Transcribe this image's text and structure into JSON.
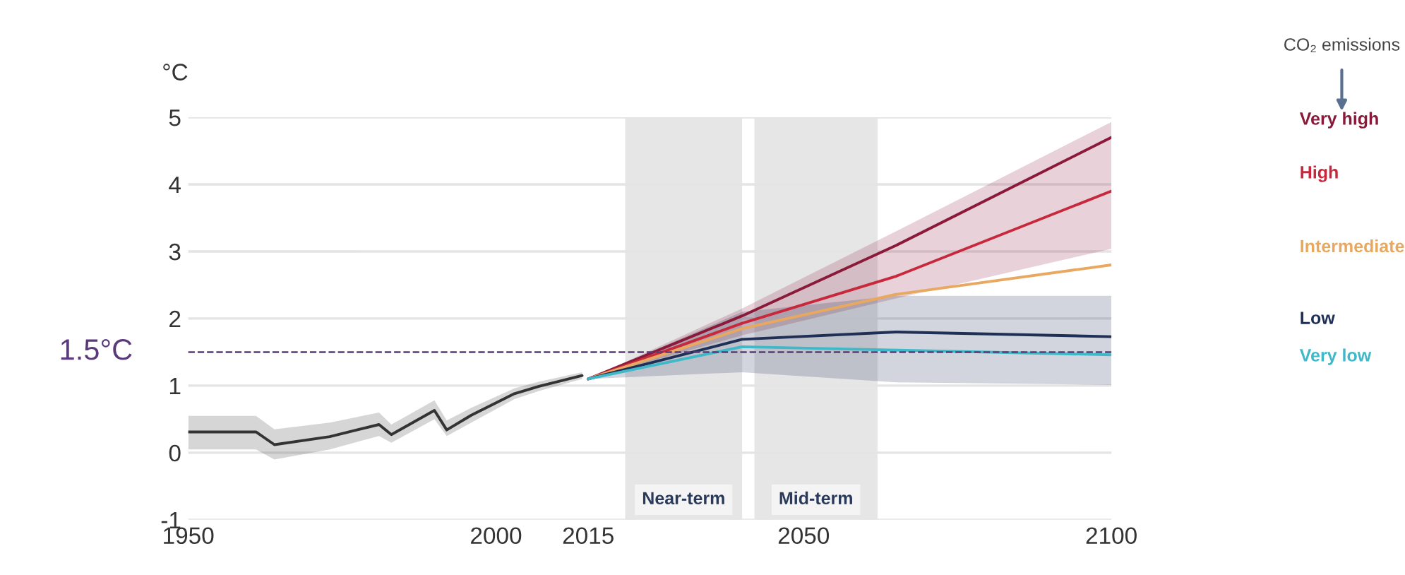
{
  "chart_data": {
    "type": "line",
    "ylabel": "°C",
    "legend_title": "CO₂ emissions",
    "legend": "right",
    "grid": "y",
    "line_style": "solid",
    "marker": "none",
    "xlim": [
      1950,
      2100
    ],
    "xticks": [
      1950,
      2000,
      2015,
      2050,
      2100
    ],
    "ylim": [
      -1,
      5
    ],
    "yticks": [
      -1,
      0,
      1,
      2,
      3,
      4,
      5
    ],
    "series": [
      {
        "color": "#333333",
        "x": [
          1950,
          1961,
          1964,
          1973,
          1981,
          1983,
          1990,
          1992,
          1996,
          2003,
          2007,
          2014
        ],
        "values": [
          0.31,
          0.31,
          0.12,
          0.24,
          0.42,
          0.27,
          0.63,
          0.34,
          0.56,
          0.88,
          0.99,
          1.15
        ],
        "lower": [
          0.05,
          0.05,
          -0.1,
          0.05,
          0.25,
          0.15,
          0.5,
          0.25,
          0.45,
          0.8,
          0.92,
          1.1
        ],
        "upper": [
          0.55,
          0.55,
          0.35,
          0.45,
          0.6,
          0.42,
          0.78,
          0.48,
          0.67,
          0.96,
          1.06,
          1.2
        ]
      },
      {
        "name": "Very high",
        "color": "#8b1a3a",
        "x": [
          2015,
          2040,
          2065,
          2100
        ],
        "values": [
          1.1,
          2.04,
          3.09,
          4.7
        ],
        "lower": [
          1.1,
          1.75,
          2.3,
          3.04
        ],
        "upper": [
          1.1,
          2.15,
          3.3,
          4.93
        ]
      },
      {
        "name": "High",
        "color": "#c8283c",
        "x": [
          2015,
          2040,
          2065,
          2100
        ],
        "values": [
          1.1,
          1.93,
          2.63,
          3.9
        ]
      },
      {
        "name": "Intermediate",
        "color": "#e8a860",
        "x": [
          2015,
          2040,
          2065,
          2100
        ],
        "values": [
          1.1,
          1.85,
          2.36,
          2.8
        ]
      },
      {
        "name": "Low",
        "color": "#1f2f55",
        "x": [
          2015,
          2040,
          2065,
          2100
        ],
        "values": [
          1.1,
          1.69,
          1.8,
          1.73
        ],
        "lower": [
          1.1,
          1.2,
          1.05,
          1.01
        ],
        "upper": [
          1.1,
          2.1,
          2.34,
          2.34
        ]
      },
      {
        "name": "Very low",
        "color": "#3fb8c8",
        "x": [
          2015,
          2040,
          2065,
          2100
        ],
        "values": [
          1.1,
          1.58,
          1.53,
          1.46
        ]
      }
    ],
    "ref_lines": [
      {
        "axis": "y",
        "value": 1.5,
        "label": "1.5°C",
        "color": "#5a3a7a",
        "line_style": "dashed"
      }
    ],
    "bands": [
      {
        "axis": "x",
        "from": 2021,
        "to": 2040,
        "label": "Near-term",
        "color": "#e6e6e6"
      },
      {
        "axis": "x",
        "from": 2042,
        "to": 2062,
        "label": "Mid-term",
        "color": "#e6e6e6"
      }
    ]
  }
}
